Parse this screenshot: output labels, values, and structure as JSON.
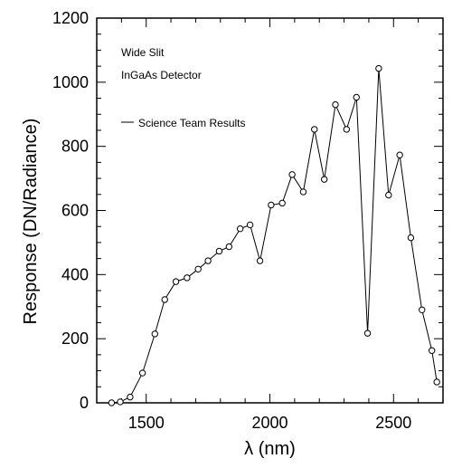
{
  "chart_data": {
    "type": "line",
    "xlabel": "λ (nm)",
    "ylabel": "Response (DN/Radiance)",
    "xlim": [
      1300,
      2700
    ],
    "ylim": [
      0,
      1200
    ],
    "x_ticks": [
      1500,
      2000,
      2500
    ],
    "y_ticks": [
      0,
      200,
      400,
      600,
      800,
      1000,
      1200
    ],
    "grid": false,
    "annotations": [
      "Wide Slit",
      "InGaAs Detector"
    ],
    "legend": {
      "placement": "upper-left",
      "entries": [
        "Science Team Results"
      ]
    },
    "series": [
      {
        "name": "Science Team Results",
        "marker": "open-circle",
        "x": [
          1360,
          1395,
          1435,
          1485,
          1535,
          1575,
          1620,
          1665,
          1710,
          1750,
          1795,
          1835,
          1880,
          1920,
          1960,
          2005,
          2050,
          2090,
          2135,
          2180,
          2220,
          2265,
          2310,
          2350,
          2395,
          2440,
          2480,
          2525,
          2570,
          2615,
          2655,
          2675
        ],
        "y": [
          0,
          3,
          18,
          93,
          215,
          322,
          378,
          390,
          417,
          443,
          473,
          487,
          543,
          555,
          443,
          617,
          623,
          712,
          658,
          853,
          697,
          930,
          853,
          953,
          217,
          1043,
          648,
          773,
          515,
          290,
          163,
          65
        ]
      }
    ]
  }
}
